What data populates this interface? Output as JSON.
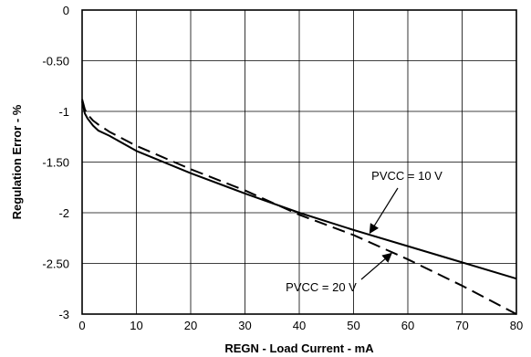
{
  "chart_data": {
    "type": "line",
    "title": "",
    "xlabel": "REGN - Load Current - mA",
    "ylabel": "Regulation Error - %",
    "xlim": [
      0,
      80
    ],
    "ylim": [
      -3,
      0
    ],
    "x_ticks": [
      0,
      10,
      20,
      30,
      40,
      50,
      60,
      70,
      80
    ],
    "y_ticks": [
      0,
      -0.5,
      -1,
      -1.5,
      -2,
      -2.5,
      -3
    ],
    "x_tick_labels": [
      "0",
      "10",
      "20",
      "30",
      "40",
      "50",
      "60",
      "70",
      "80"
    ],
    "y_tick_labels": [
      "0",
      "-0.50",
      "-1",
      "-1.50",
      "-2",
      "-2.50",
      "-3"
    ],
    "grid": true,
    "legend": "none",
    "series": [
      {
        "name": "PVCC = 10 V",
        "style": "solid",
        "color": "#000000",
        "x": [
          0,
          0.5,
          1,
          2,
          3,
          5,
          10,
          20,
          30,
          40,
          50,
          60,
          70,
          80
        ],
        "y": [
          -0.9,
          -1.02,
          -1.07,
          -1.14,
          -1.19,
          -1.24,
          -1.39,
          -1.61,
          -1.81,
          -2.0,
          -2.17,
          -2.33,
          -2.49,
          -2.65
        ]
      },
      {
        "name": "PVCC = 20 V",
        "style": "dashed",
        "color": "#000000",
        "x": [
          0,
          0.5,
          1,
          2,
          3,
          5,
          10,
          20,
          30,
          40,
          50,
          60,
          70,
          80
        ],
        "y": [
          -0.88,
          -0.98,
          -1.03,
          -1.09,
          -1.13,
          -1.2,
          -1.34,
          -1.57,
          -1.78,
          -2.02,
          -2.22,
          -2.46,
          -2.72,
          -3.0
        ]
      }
    ],
    "annotations": [
      {
        "text": "PVCC = 10 V",
        "target_series": "PVCC = 10 V",
        "arrow_to": [
          53,
          -2.2
        ]
      },
      {
        "text": "PVCC = 20 V",
        "target_series": "PVCC = 20 V",
        "arrow_to": [
          57,
          -2.4
        ]
      }
    ]
  }
}
